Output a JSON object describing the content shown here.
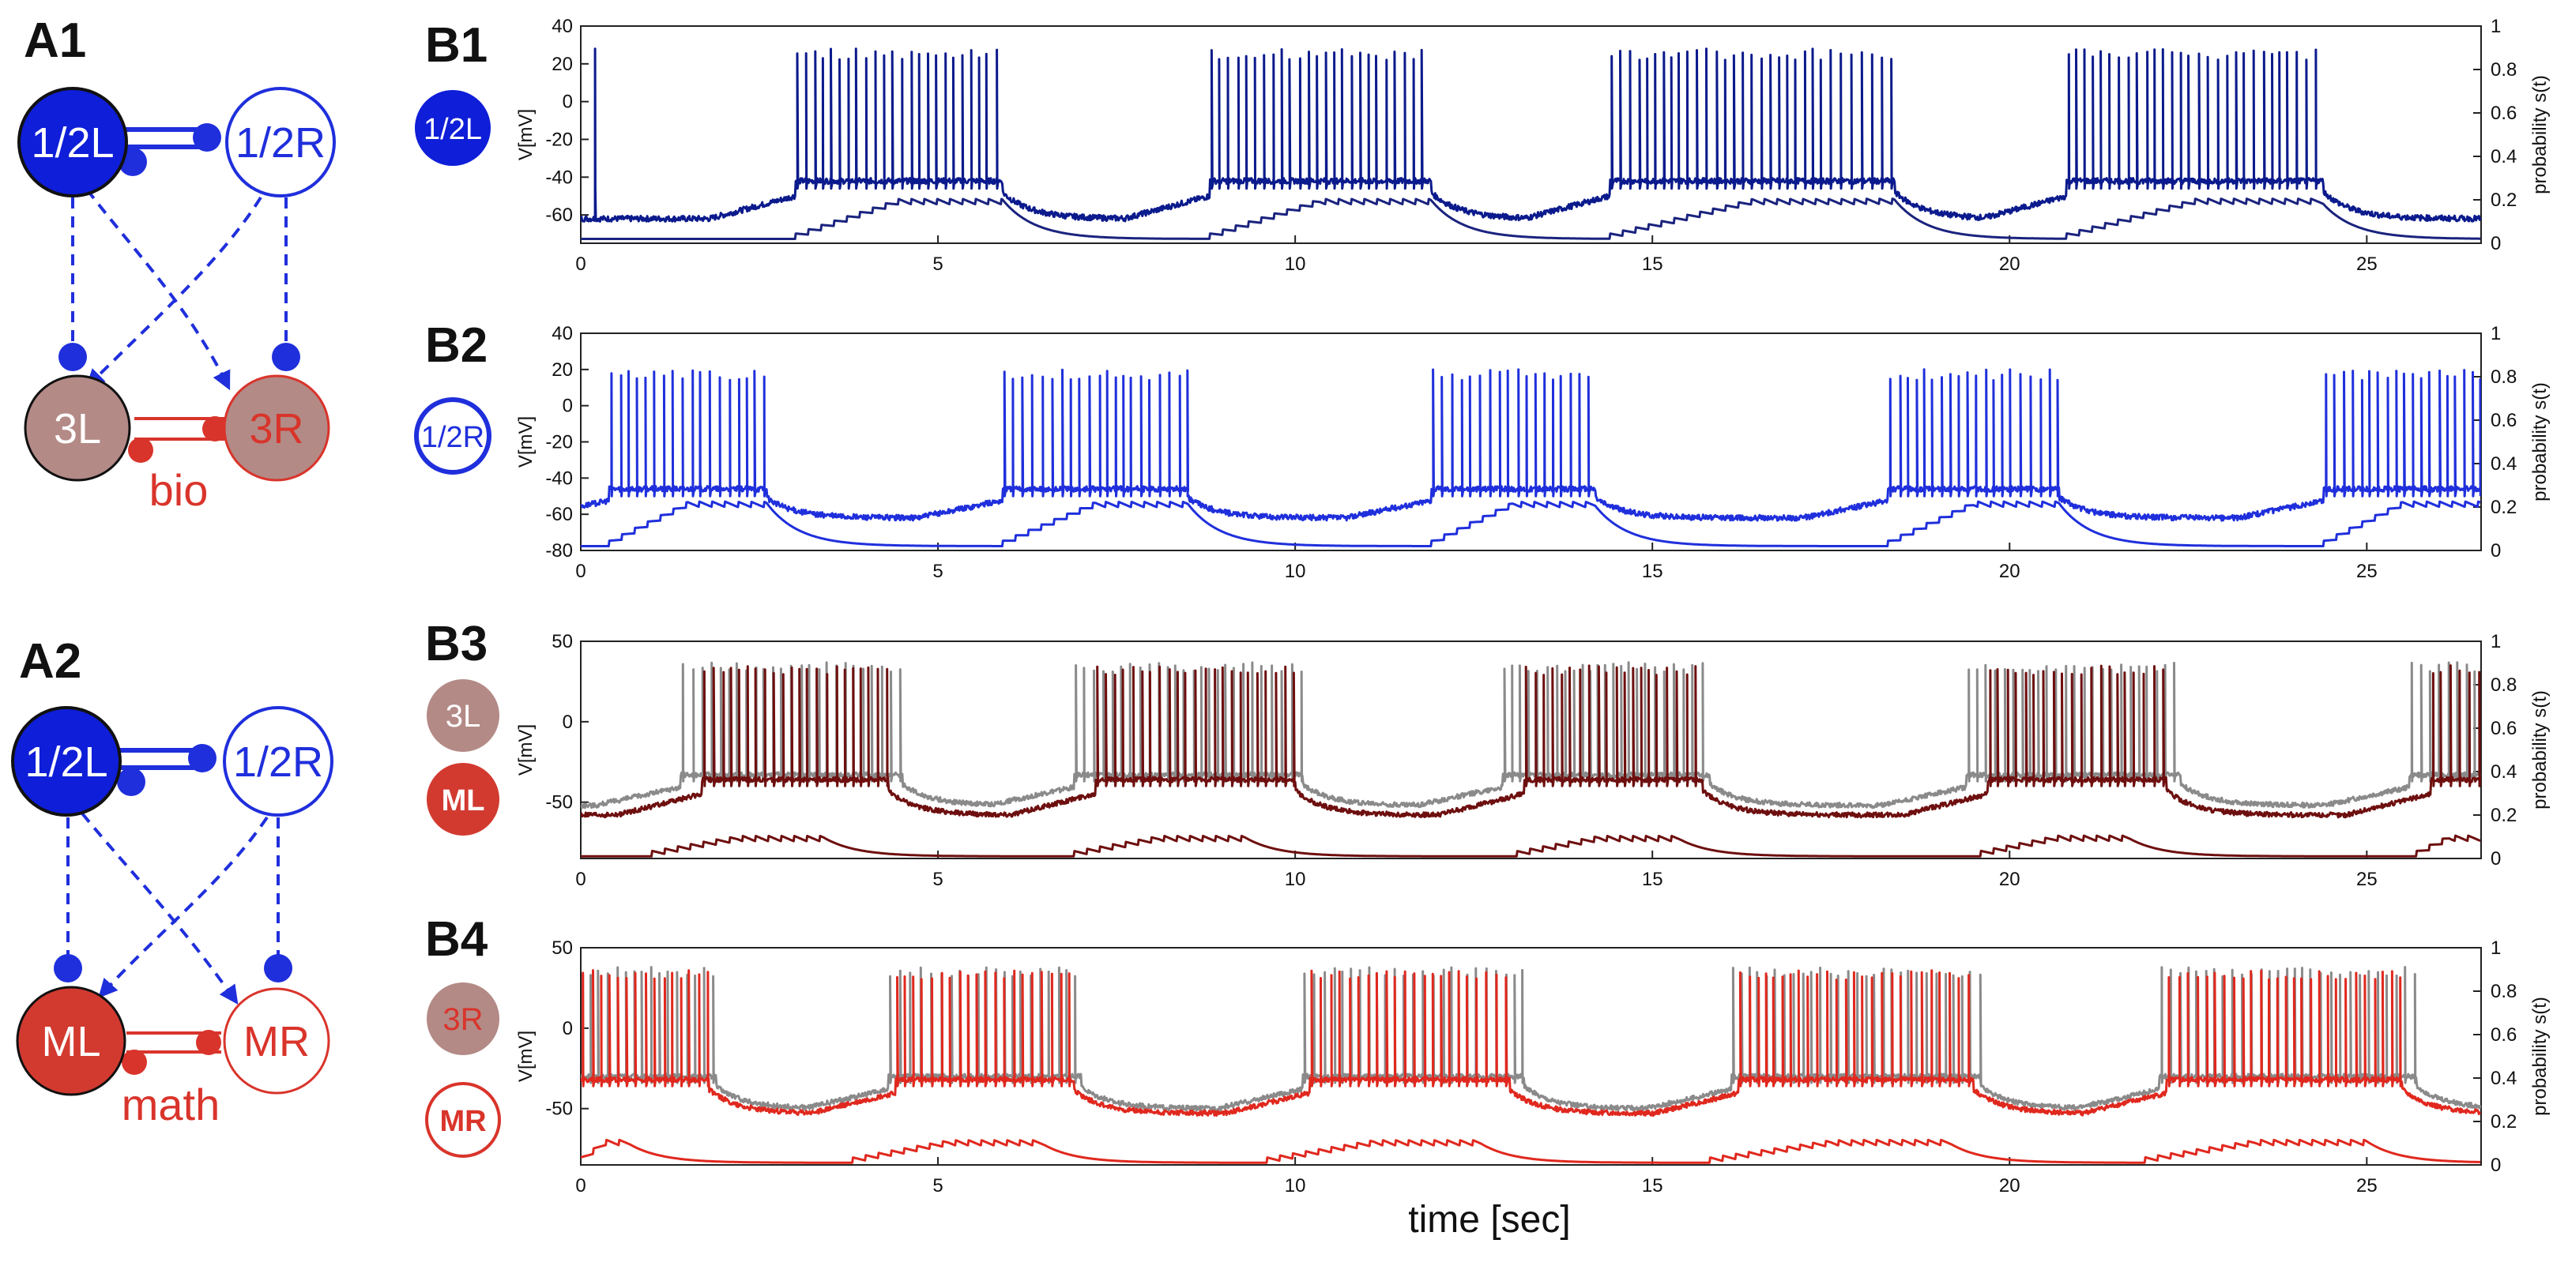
{
  "colors": {
    "blue_dark": "#0b1a8c",
    "navy": "#1a237e",
    "blue": "#1f2fdc",
    "brown_dark": "#6e0f0f",
    "red": "#e0281e",
    "gray": "#8a8a8a",
    "node_3": "#b38a86",
    "node_m": "#d23a30"
  },
  "panels": {
    "A1": {
      "label": "A1",
      "nodes": {
        "l12": "1/2L",
        "r12": "1/2R",
        "l3": "3L",
        "r3": "3R"
      },
      "synapse_label": "bio"
    },
    "A2": {
      "label": "A2",
      "nodes": {
        "l12": "1/2L",
        "r12": "1/2R",
        "ml": "ML",
        "mr": "MR"
      },
      "synapse_label": "math"
    },
    "B_labels": {
      "B1": "B1",
      "B2": "B2",
      "B3": "B3",
      "B4": "B4"
    },
    "B_nodes": {
      "B1": "1/2L",
      "B2": "1/2R",
      "B3_top": "3L",
      "B3_bottom": "ML",
      "B4_top": "3R",
      "B4_bottom": "MR"
    }
  },
  "chart_data": [
    {
      "id": "B1",
      "type": "line",
      "xlabel": "",
      "ylabel": "V[mV]",
      "y2label": "probability s(t)",
      "xlim": [
        0,
        26.6
      ],
      "ylim": [
        -75,
        40
      ],
      "y2lim": [
        0,
        1
      ],
      "xticks": [
        0,
        5,
        10,
        15,
        20,
        25
      ],
      "yticks": [
        40,
        20,
        0,
        -20,
        -40,
        -60
      ],
      "y2ticks": [
        1,
        0.8,
        0.6,
        0.4,
        0.2,
        0
      ],
      "series": [
        {
          "name": "1/2L voltage",
          "color": "#0b1a8c",
          "axis": "left",
          "baseline": -62,
          "burst_level": -42,
          "spike_peak": 28,
          "bursts": [
            [
              3.0,
              5.9
            ],
            [
              8.8,
              11.9
            ],
            [
              14.4,
              18.4
            ],
            [
              20.8,
              24.4
            ]
          ],
          "isolated_spikes": [
            0.2
          ]
        },
        {
          "name": "1/2L synaptic probability",
          "color": "#1a237e",
          "axis": "right",
          "baseline": 0.02,
          "plateau": 0.18,
          "bursts": [
            [
              3.0,
              5.9
            ],
            [
              8.8,
              11.9
            ],
            [
              14.4,
              18.4
            ],
            [
              20.8,
              24.4
            ]
          ]
        }
      ]
    },
    {
      "id": "B2",
      "type": "line",
      "xlabel": "",
      "ylabel": "V[mV]",
      "y2label": "probability s(t)",
      "xlim": [
        0,
        26.6
      ],
      "ylim": [
        -80,
        40
      ],
      "y2lim": [
        0,
        1
      ],
      "xticks": [
        0,
        5,
        10,
        15,
        20,
        25
      ],
      "yticks": [
        40,
        20,
        0,
        -20,
        -40,
        -60,
        -80
      ],
      "y2ticks": [
        1,
        0.8,
        0.6,
        0.4,
        0.2,
        0
      ],
      "series": [
        {
          "name": "1/2R voltage",
          "color": "#1f2fdc",
          "axis": "left",
          "baseline": -62,
          "burst_level": -46,
          "spike_peak": 20,
          "bursts": [
            [
              0.4,
              2.6
            ],
            [
              5.9,
              8.5
            ],
            [
              11.9,
              14.2
            ],
            [
              18.3,
              20.7
            ],
            [
              24.4,
              26.6
            ]
          ]
        },
        {
          "name": "1/2R synaptic probability",
          "color": "#1f2fdc",
          "axis": "right",
          "baseline": 0.02,
          "plateau": 0.2,
          "bursts": [
            [
              0.4,
              2.6
            ],
            [
              5.9,
              8.5
            ],
            [
              11.9,
              14.2
            ],
            [
              18.3,
              20.7
            ],
            [
              24.4,
              26.6
            ]
          ]
        }
      ]
    },
    {
      "id": "B3",
      "type": "line",
      "xlabel": "",
      "ylabel": "V[mV]",
      "y2label": "probability s(t)",
      "xlim": [
        0,
        26.6
      ],
      "ylim": [
        -85,
        50
      ],
      "y2lim": [
        0,
        1
      ],
      "xticks": [
        0,
        5,
        10,
        15,
        20,
        25
      ],
      "yticks": [
        50,
        0,
        -50
      ],
      "y2ticks": [
        1,
        0.8,
        0.6,
        0.4,
        0.2,
        0
      ],
      "series": [
        {
          "name": "3L voltage",
          "color": "#8a8a8a",
          "axis": "left",
          "baseline": -52,
          "burst_level": -33,
          "spike_peak": 37,
          "bursts": [
            [
              1.4,
              4.5
            ],
            [
              6.9,
              10.1
            ],
            [
              12.9,
              15.8
            ],
            [
              19.4,
              22.4
            ],
            [
              25.6,
              26.6
            ]
          ]
        },
        {
          "name": "ML voltage",
          "color": "#6e0f0f",
          "axis": "left",
          "baseline": -58,
          "burst_level": -36,
          "spike_peak": 35,
          "bursts": [
            [
              1.7,
              4.3
            ],
            [
              7.2,
              10.0
            ],
            [
              13.2,
              15.7
            ],
            [
              19.7,
              22.2
            ],
            [
              25.9,
              26.6
            ]
          ]
        },
        {
          "name": "ML synaptic probability",
          "color": "#6e0f0f",
          "axis": "right",
          "baseline": 0.01,
          "plateau": 0.08,
          "bursts": [
            [
              1.0,
              3.4
            ],
            [
              6.9,
              9.3
            ],
            [
              13.1,
              15.4
            ],
            [
              19.6,
              21.7
            ],
            [
              25.7,
              26.6
            ]
          ]
        }
      ]
    },
    {
      "id": "B4",
      "type": "line",
      "xlabel": "time [sec]",
      "ylabel": "V[mV]",
      "y2label": "probability s(t)",
      "xlim": [
        0,
        26.6
      ],
      "ylim": [
        -85,
        50
      ],
      "y2lim": [
        0,
        1
      ],
      "xticks": [
        0,
        5,
        10,
        15,
        20,
        25
      ],
      "yticks": [
        50,
        0,
        -50
      ],
      "y2ticks": [
        1,
        0.8,
        0.6,
        0.4,
        0.2,
        0
      ],
      "series": [
        {
          "name": "3R voltage",
          "color": "#8a8a8a",
          "axis": "left",
          "baseline": -50,
          "burst_level": -30,
          "spike_peak": 38,
          "bursts": [
            [
              0.0,
              1.9
            ],
            [
              4.3,
              7.0
            ],
            [
              10.1,
              13.2
            ],
            [
              16.1,
              19.6
            ],
            [
              22.1,
              25.7
            ]
          ]
        },
        {
          "name": "MR voltage",
          "color": "#e0281e",
          "axis": "left",
          "baseline": -53,
          "burst_level": -32,
          "spike_peak": 36,
          "bursts": [
            [
              0.0,
              1.8
            ],
            [
              4.4,
              6.9
            ],
            [
              10.2,
              13.0
            ],
            [
              16.2,
              19.5
            ],
            [
              22.2,
              25.5
            ]
          ]
        },
        {
          "name": "MR synaptic probability",
          "color": "#e0281e",
          "axis": "right",
          "baseline": 0.01,
          "plateau": 0.09,
          "bursts": [
            [
              0.0,
              0.7
            ],
            [
              3.8,
              6.5
            ],
            [
              9.6,
              12.6
            ],
            [
              15.8,
              19.2
            ],
            [
              21.9,
              25.0
            ]
          ]
        }
      ]
    }
  ]
}
